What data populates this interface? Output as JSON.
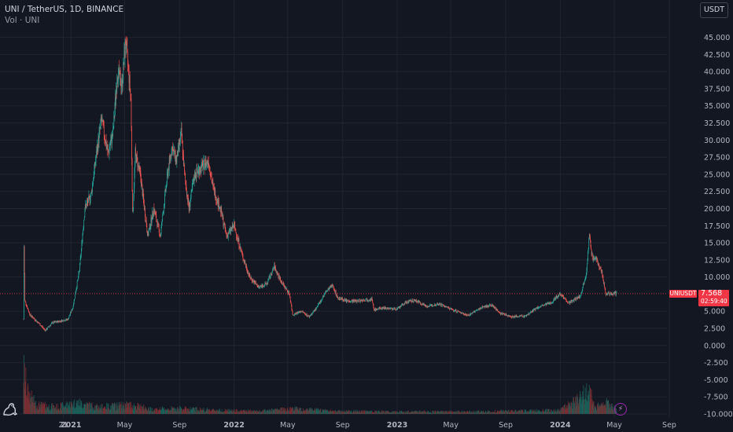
{
  "legend": {
    "title": "UNI / TetherUS, 1D, BINANCE",
    "volume": "Vol · UNI"
  },
  "unit_button": "USDT",
  "current_price": {
    "symbol": "UNIUSDT",
    "price": "7.568",
    "countdown": "02:59:40",
    "value": 7.568
  },
  "chart_data": {
    "type": "candlestick",
    "y_ticks": [
      "45.000",
      "42.500",
      "40.000",
      "37.500",
      "35.000",
      "32.500",
      "30.000",
      "27.500",
      "25.000",
      "22.500",
      "20.000",
      "17.500",
      "15.000",
      "12.500",
      "10.000",
      "5.000",
      "2.500",
      "0.000",
      "-2.500",
      "-5.000",
      "-7.500",
      "-10.000"
    ],
    "ylim": [
      -10,
      46.5
    ],
    "x_ticks": [
      "21",
      "2021",
      "May",
      "Sep",
      "2022",
      "May",
      "Sep",
      "2023",
      "May",
      "Sep",
      "2024",
      "May",
      "Sep"
    ],
    "x_tick_dates": [
      "2020-12-15",
      "2021-01-01",
      "2021-05-01",
      "2021-09-01",
      "2022-01-01",
      "2022-05-01",
      "2022-09-01",
      "2023-01-01",
      "2023-05-01",
      "2023-09-01",
      "2024-01-01",
      "2024-05-01",
      "2024-09-01"
    ],
    "start_date": "2020-09-17",
    "end_date": "2024-05-06",
    "close_series": [
      [
        "2020-09-17",
        3.8
      ],
      [
        "2020-09-18",
        14.5
      ],
      [
        "2020-09-20",
        6.5
      ],
      [
        "2020-10-01",
        4.5
      ],
      [
        "2020-10-20",
        3.3
      ],
      [
        "2020-11-05",
        2.2
      ],
      [
        "2020-11-20",
        3.3
      ],
      [
        "2020-12-10",
        3.6
      ],
      [
        "2020-12-25",
        3.8
      ],
      [
        "2021-01-05",
        5.5
      ],
      [
        "2021-01-20",
        11.0
      ],
      [
        "2021-02-01",
        20.0
      ],
      [
        "2021-02-15",
        22.0
      ],
      [
        "2021-02-25",
        27.0
      ],
      [
        "2021-03-10",
        33.0
      ],
      [
        "2021-03-25",
        28.0
      ],
      [
        "2021-04-05",
        31.0
      ],
      [
        "2021-04-15",
        40.0
      ],
      [
        "2021-04-25",
        38.0
      ],
      [
        "2021-05-03",
        44.5
      ],
      [
        "2021-05-10",
        40.0
      ],
      [
        "2021-05-15",
        36.0
      ],
      [
        "2021-05-19",
        19.0
      ],
      [
        "2021-05-25",
        28.0
      ],
      [
        "2021-06-05",
        25.0
      ],
      [
        "2021-06-22",
        16.0
      ],
      [
        "2021-07-05",
        20.0
      ],
      [
        "2021-07-20",
        16.0
      ],
      [
        "2021-08-05",
        25.0
      ],
      [
        "2021-08-15",
        29.0
      ],
      [
        "2021-08-25",
        27.0
      ],
      [
        "2021-09-05",
        31.0
      ],
      [
        "2021-09-12",
        25.0
      ],
      [
        "2021-09-22",
        20.0
      ],
      [
        "2021-10-05",
        25.0
      ],
      [
        "2021-10-20",
        26.0
      ],
      [
        "2021-11-05",
        27.0
      ],
      [
        "2021-11-15",
        23.0
      ],
      [
        "2021-12-01",
        20.0
      ],
      [
        "2021-12-15",
        16.0
      ],
      [
        "2022-01-01",
        17.5
      ],
      [
        "2022-01-20",
        13.0
      ],
      [
        "2022-02-05",
        10.0
      ],
      [
        "2022-02-25",
        8.5
      ],
      [
        "2022-03-15",
        9.0
      ],
      [
        "2022-04-01",
        11.5
      ],
      [
        "2022-04-15",
        9.5
      ],
      [
        "2022-05-05",
        7.5
      ],
      [
        "2022-05-12",
        4.5
      ],
      [
        "2022-06-01",
        5.0
      ],
      [
        "2022-06-18",
        4.2
      ],
      [
        "2022-07-05",
        5.5
      ],
      [
        "2022-07-25",
        7.8
      ],
      [
        "2022-08-10",
        8.8
      ],
      [
        "2022-08-20",
        7.0
      ],
      [
        "2022-09-10",
        6.5
      ],
      [
        "2022-10-01",
        6.5
      ],
      [
        "2022-11-05",
        6.8
      ],
      [
        "2022-11-10",
        5.2
      ],
      [
        "2022-12-01",
        5.5
      ],
      [
        "2023-01-01",
        5.3
      ],
      [
        "2023-01-20",
        6.3
      ],
      [
        "2023-02-10",
        6.6
      ],
      [
        "2023-03-10",
        5.7
      ],
      [
        "2023-04-05",
        6.1
      ],
      [
        "2023-05-01",
        5.3
      ],
      [
        "2023-06-10",
        4.4
      ],
      [
        "2023-07-10",
        5.6
      ],
      [
        "2023-08-01",
        5.9
      ],
      [
        "2023-08-20",
        4.7
      ],
      [
        "2023-09-15",
        4.2
      ],
      [
        "2023-10-15",
        4.3
      ],
      [
        "2023-11-10",
        5.5
      ],
      [
        "2023-12-10",
        6.2
      ],
      [
        "2024-01-01",
        7.6
      ],
      [
        "2024-01-20",
        6.2
      ],
      [
        "2024-02-15",
        7.2
      ],
      [
        "2024-02-28",
        10.5
      ],
      [
        "2024-03-06",
        16.0
      ],
      [
        "2024-03-12",
        13.0
      ],
      [
        "2024-03-22",
        12.5
      ],
      [
        "2024-04-02",
        11.0
      ],
      [
        "2024-04-12",
        7.5
      ],
      [
        "2024-04-20",
        7.6
      ],
      [
        "2024-05-06",
        7.568
      ]
    ],
    "volume_levels": [
      [
        "2020-09-17",
        1.0
      ],
      [
        "2020-09-25",
        0.5
      ],
      [
        "2020-10-15",
        0.2
      ],
      [
        "2020-12-01",
        0.15
      ],
      [
        "2021-01-15",
        0.25
      ],
      [
        "2021-03-01",
        0.15
      ],
      [
        "2021-05-15",
        0.2
      ],
      [
        "2021-07-01",
        0.1
      ],
      [
        "2021-09-01",
        0.12
      ],
      [
        "2021-12-01",
        0.08
      ],
      [
        "2022-03-01",
        0.06
      ],
      [
        "2022-05-12",
        0.12
      ],
      [
        "2022-08-01",
        0.07
      ],
      [
        "2022-12-01",
        0.05
      ],
      [
        "2023-06-01",
        0.05
      ],
      [
        "2024-01-01",
        0.08
      ],
      [
        "2024-03-06",
        0.5
      ],
      [
        "2024-03-20",
        0.15
      ],
      [
        "2024-04-13",
        0.25
      ],
      [
        "2024-05-06",
        0.1
      ]
    ],
    "colors": {
      "up": "#26a69a",
      "down": "#ef5350",
      "up_volume": "#1c5e58",
      "down_volume": "#7a2e33",
      "grid": "#1f2430",
      "price_line": "#f23645"
    }
  }
}
